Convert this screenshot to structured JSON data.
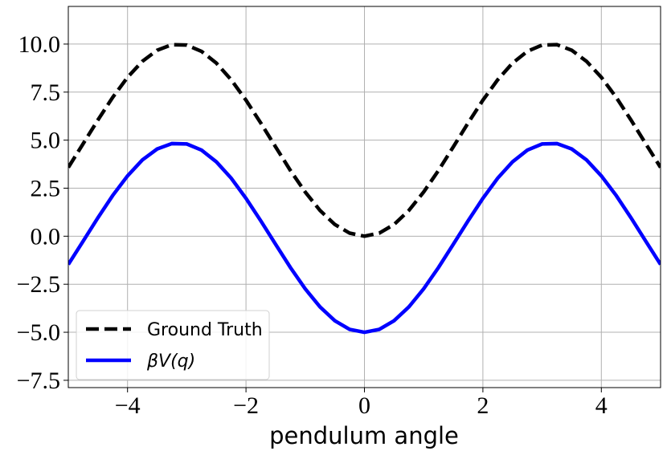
{
  "chart_data": {
    "type": "line",
    "xlabel": "pendulum angle",
    "x": [
      -5,
      -4.75,
      -4.5,
      -4.25,
      -4,
      -3.75,
      -3.5,
      -3.25,
      -3,
      -2.75,
      -2.5,
      -2.25,
      -2,
      -1.75,
      -1.5,
      -1.25,
      -1,
      -0.75,
      -0.5,
      -0.25,
      0,
      0.25,
      0.5,
      0.75,
      1,
      1.25,
      1.5,
      1.75,
      2,
      2.25,
      2.5,
      2.75,
      3,
      3.25,
      3.5,
      3.75,
      4,
      4.25,
      4.5,
      4.75,
      5
    ],
    "series": [
      {
        "name": "Ground Truth",
        "color": "#000000",
        "dash": true,
        "values": [
          3.58,
          4.81,
          6.05,
          7.23,
          8.27,
          9.1,
          9.68,
          9.97,
          9.95,
          9.62,
          9.01,
          8.14,
          7.08,
          5.89,
          4.65,
          3.42,
          2.3,
          1.34,
          0.61,
          0.16,
          0,
          0.16,
          0.61,
          1.34,
          2.3,
          3.42,
          4.65,
          5.89,
          7.08,
          8.14,
          9.01,
          9.62,
          9.95,
          9.97,
          9.68,
          9.1,
          8.27,
          7.23,
          6.05,
          4.81,
          3.58
        ]
      },
      {
        "name": "βV(q)",
        "color": "#0000ff",
        "dash": false,
        "values": [
          -1.47,
          -0.26,
          0.96,
          2.12,
          3.14,
          3.97,
          4.54,
          4.82,
          4.8,
          4.48,
          3.87,
          3.02,
          1.97,
          0.8,
          -0.42,
          -1.63,
          -2.74,
          -3.68,
          -4.4,
          -4.85,
          -5.0,
          -4.85,
          -4.4,
          -3.68,
          -2.74,
          -1.63,
          -0.42,
          0.8,
          1.97,
          3.02,
          3.87,
          4.48,
          4.8,
          4.82,
          4.54,
          3.97,
          3.14,
          2.12,
          0.96,
          -0.26,
          -1.47
        ]
      }
    ],
    "xlim": [
      -5,
      5
    ],
    "ylim": [
      -7.88,
      11.96
    ],
    "xticks": [
      {
        "value": -4,
        "label": "−4"
      },
      {
        "value": -2,
        "label": "−2"
      },
      0,
      2,
      4
    ],
    "yticks": [
      {
        "value": -7.5,
        "label": "−7.5"
      },
      {
        "value": -5,
        "label": "−5.0"
      },
      {
        "value": -2.5,
        "label": "−2.5"
      },
      {
        "value": 0,
        "label": "0.0"
      },
      2.5,
      {
        "value": 5,
        "label": "5.0"
      },
      7.5,
      {
        "value": 10,
        "label": "10.0"
      }
    ],
    "grid": true,
    "legend": "lower left"
  }
}
